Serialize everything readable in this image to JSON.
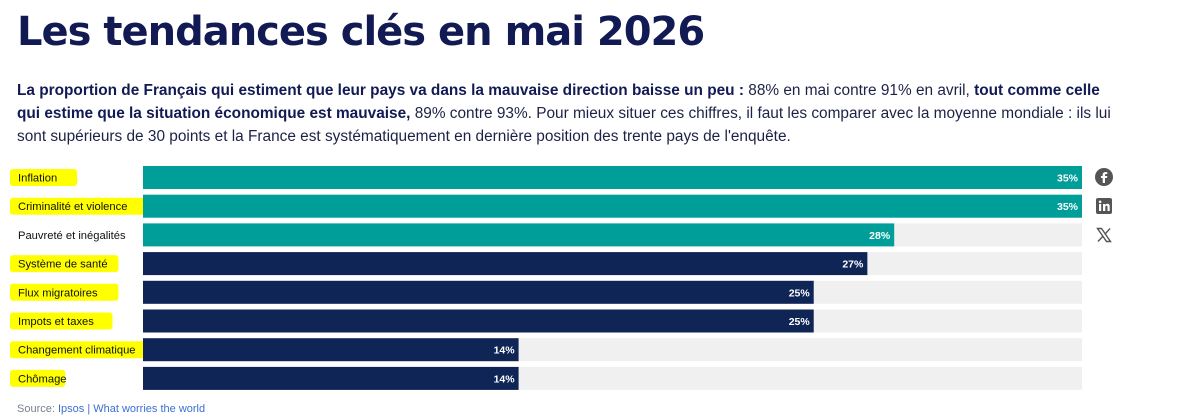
{
  "page": {
    "title": "Les tendances clés en mai 2026",
    "intro": [
      {
        "text": "La proportion de Français qui estiment que leur pays va dans la mauvaise direction baisse un peu :",
        "bold": true
      },
      {
        "text": " 88% en mai contre 91% en avril, ",
        "bold": false
      },
      {
        "text": "tout comme celle qui estime que la situation économique est mauvaise,",
        "bold": true
      },
      {
        "text": " 89% contre 93%. Pour mieux situer ces chiffres, il faut les comparer avec la moyenne mondiale : ils lui sont supérieurs de 30 points et la France est systématiquement en dernière position des trente pays de l'enquête.",
        "bold": false
      }
    ],
    "source_prefix": "Source: ",
    "source_link": "Ipsos | What worries the world"
  },
  "share": [
    {
      "icon": "facebook-icon"
    },
    {
      "icon": "linkedin-icon"
    },
    {
      "icon": "x-icon"
    }
  ],
  "colors": {
    "teal": "#009e98",
    "navy": "#0f2556",
    "track": "#f0f0f0",
    "highlight": "#ffff00"
  },
  "chart_data": {
    "type": "bar",
    "orientation": "horizontal",
    "categories": [
      "Inflation",
      "Criminalité et violence",
      "Pauvreté et inégalités",
      "Système de santé",
      "Flux migratoires",
      "Impots et taxes",
      "Changement climatique",
      "Chômage"
    ],
    "values": [
      35,
      35,
      28,
      27,
      25,
      25,
      14,
      14
    ],
    "labels": [
      "35%",
      "35%",
      "28%",
      "27%",
      "25%",
      "25%",
      "14%",
      "14%"
    ],
    "bar_colors": [
      "teal",
      "teal",
      "teal",
      "navy",
      "navy",
      "navy",
      "navy",
      "navy"
    ],
    "highlighted": [
      true,
      true,
      false,
      true,
      true,
      true,
      true,
      true
    ],
    "xlim": [
      0,
      35
    ],
    "grid": false,
    "title": "",
    "xlabel": "",
    "ylabel": ""
  }
}
